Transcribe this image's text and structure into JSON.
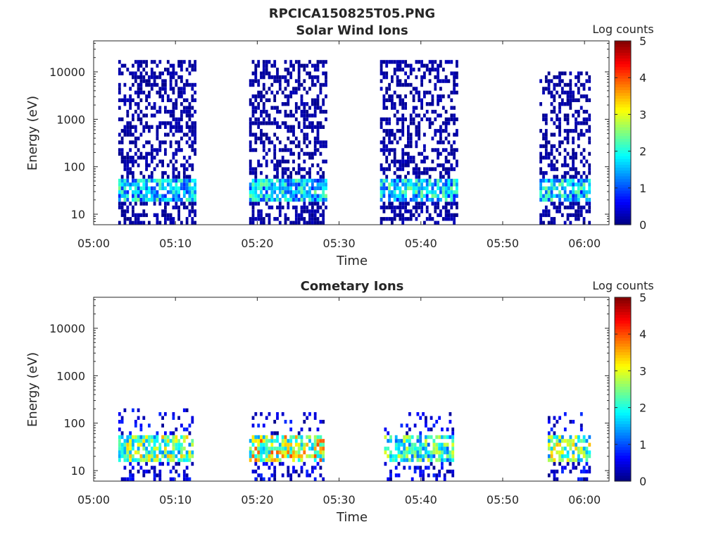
{
  "figure_title": "RPCICA150825T05.PNG",
  "chart_data": [
    {
      "type": "heatmap",
      "title": "Solar Wind Ions",
      "xlabel": "Time",
      "ylabel": "Energy (eV)",
      "x_ticks": [
        "05:00",
        "05:10",
        "05:20",
        "05:30",
        "05:40",
        "05:50",
        "06:00"
      ],
      "x_range": [
        "05:00",
        "06:03"
      ],
      "y_scale": "log",
      "y_ticks": [
        10,
        100,
        1000,
        10000
      ],
      "y_range": [
        6,
        45000
      ],
      "colorbar": {
        "label": "Log counts",
        "ticks": [
          0,
          1,
          2,
          3,
          4,
          5
        ],
        "range": [
          0,
          5
        ],
        "colormap": "jet"
      },
      "data_blocks": [
        {
          "start": "05:03",
          "end": "05:12.5",
          "max_energy_ev": 15000,
          "peak_energy_ev": 30,
          "peak_log_counts": 2.5
        },
        {
          "start": "05:19",
          "end": "05:28.5",
          "max_energy_ev": 15000,
          "peak_energy_ev": 30,
          "peak_log_counts": 2.5
        },
        {
          "start": "05:35",
          "end": "05:44.5",
          "max_energy_ev": 15000,
          "peak_energy_ev": 30,
          "peak_log_counts": 2.5
        },
        {
          "start": "05:54.5",
          "end": "06:00.5",
          "max_energy_ev": 10000,
          "peak_energy_ev": 30,
          "peak_log_counts": 2.5
        }
      ],
      "grid": false
    },
    {
      "type": "heatmap",
      "title": "Cometary Ions",
      "xlabel": "Time",
      "ylabel": "Energy (eV)",
      "x_ticks": [
        "05:00",
        "05:10",
        "05:20",
        "05:30",
        "05:40",
        "05:50",
        "06:00"
      ],
      "x_range": [
        "05:00",
        "06:03"
      ],
      "y_scale": "log",
      "y_ticks": [
        10,
        100,
        1000,
        10000
      ],
      "y_range": [
        6,
        45000
      ],
      "colorbar": {
        "label": "Log counts",
        "ticks": [
          0,
          1,
          2,
          3,
          4,
          5
        ],
        "range": [
          0,
          5
        ],
        "colormap": "jet"
      },
      "data_blocks": [
        {
          "start": "05:03",
          "end": "05:12",
          "max_energy_ev": 200,
          "peak_energy_ev": 30,
          "peak_log_counts": 3.5
        },
        {
          "start": "05:19",
          "end": "05:28",
          "max_energy_ev": 150,
          "peak_energy_ev": 30,
          "peak_log_counts": 4
        },
        {
          "start": "05:35.5",
          "end": "05:44",
          "max_energy_ev": 150,
          "peak_energy_ev": 30,
          "peak_log_counts": 3
        },
        {
          "start": "05:55.5",
          "end": "06:00.5",
          "max_energy_ev": 150,
          "peak_energy_ev": 30,
          "peak_log_counts": 3.5
        }
      ],
      "grid": false
    }
  ]
}
